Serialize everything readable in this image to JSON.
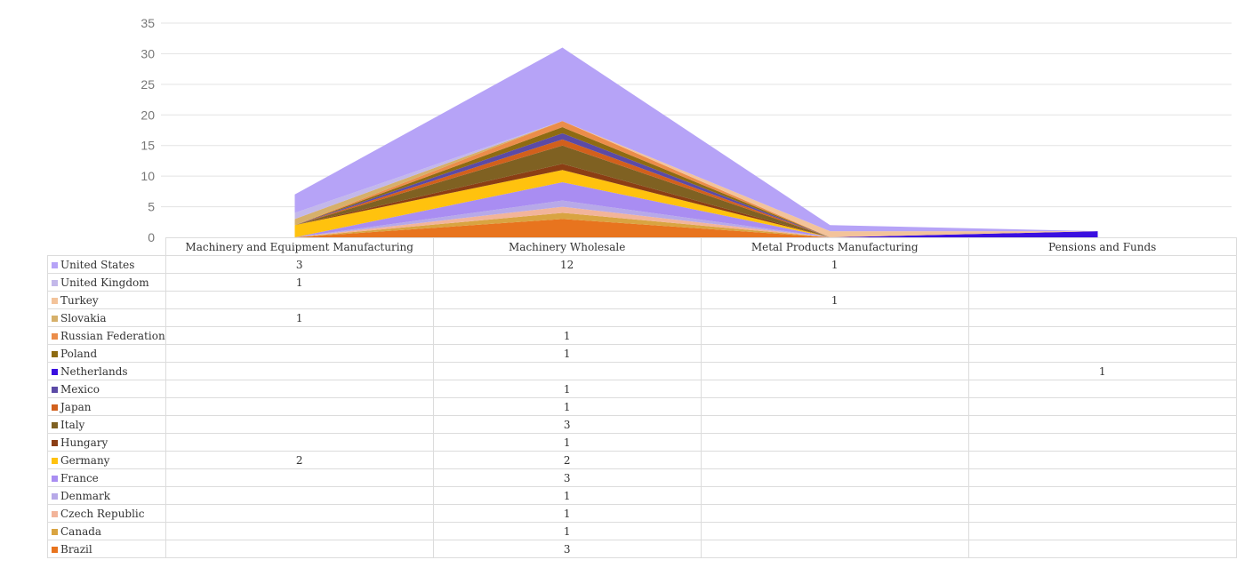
{
  "chart_data": {
    "type": "area",
    "stacked": true,
    "title": "",
    "xlabel": "",
    "ylabel": "",
    "ylim": [
      0,
      35
    ],
    "yticks": [
      0,
      5,
      10,
      15,
      20,
      25,
      30,
      35
    ],
    "grid": true,
    "legend": "table-left",
    "categories": [
      "Machinery and Equipment Manufacturing",
      "Machinery Wholesale",
      "Metal Products Manufacturing",
      "Pensions and Funds"
    ],
    "series": [
      {
        "name": "Brazil",
        "color": "#E8741E",
        "values": [
          null,
          3,
          null,
          null
        ]
      },
      {
        "name": "Canada",
        "color": "#D9A441",
        "values": [
          null,
          1,
          null,
          null
        ]
      },
      {
        "name": "Czech Republic",
        "color": "#F2B49A",
        "values": [
          null,
          1,
          null,
          null
        ]
      },
      {
        "name": "Denmark",
        "color": "#B7A9E8",
        "values": [
          null,
          1,
          null,
          null
        ]
      },
      {
        "name": "France",
        "color": "#A98DF2",
        "values": [
          null,
          3,
          null,
          null
        ]
      },
      {
        "name": "Germany",
        "color": "#FFC20E",
        "values": [
          2,
          2,
          null,
          null
        ]
      },
      {
        "name": "Hungary",
        "color": "#8B3E14",
        "values": [
          null,
          1,
          null,
          null
        ]
      },
      {
        "name": "Italy",
        "color": "#7F6122",
        "values": [
          null,
          3,
          null,
          null
        ]
      },
      {
        "name": "Japan",
        "color": "#D2601C",
        "values": [
          null,
          1,
          null,
          null
        ]
      },
      {
        "name": "Mexico",
        "color": "#5B4AA6",
        "values": [
          null,
          1,
          null,
          null
        ]
      },
      {
        "name": "Netherlands",
        "color": "#3A0FE0",
        "values": [
          null,
          null,
          null,
          1
        ]
      },
      {
        "name": "Poland",
        "color": "#8E6B12",
        "values": [
          null,
          1,
          null,
          null
        ]
      },
      {
        "name": "Russian Federation",
        "color": "#EB8D4A",
        "values": [
          null,
          1,
          null,
          null
        ]
      },
      {
        "name": "Slovakia",
        "color": "#D6B06A",
        "values": [
          1,
          null,
          null,
          null
        ]
      },
      {
        "name": "Turkey",
        "color": "#F3C39A",
        "values": [
          null,
          null,
          1,
          null
        ]
      },
      {
        "name": "United Kingdom",
        "color": "#C3B8EA",
        "values": [
          1,
          null,
          null,
          null
        ]
      },
      {
        "name": "United States",
        "color": "#B6A3F7",
        "values": [
          3,
          12,
          1,
          null
        ]
      }
    ]
  }
}
